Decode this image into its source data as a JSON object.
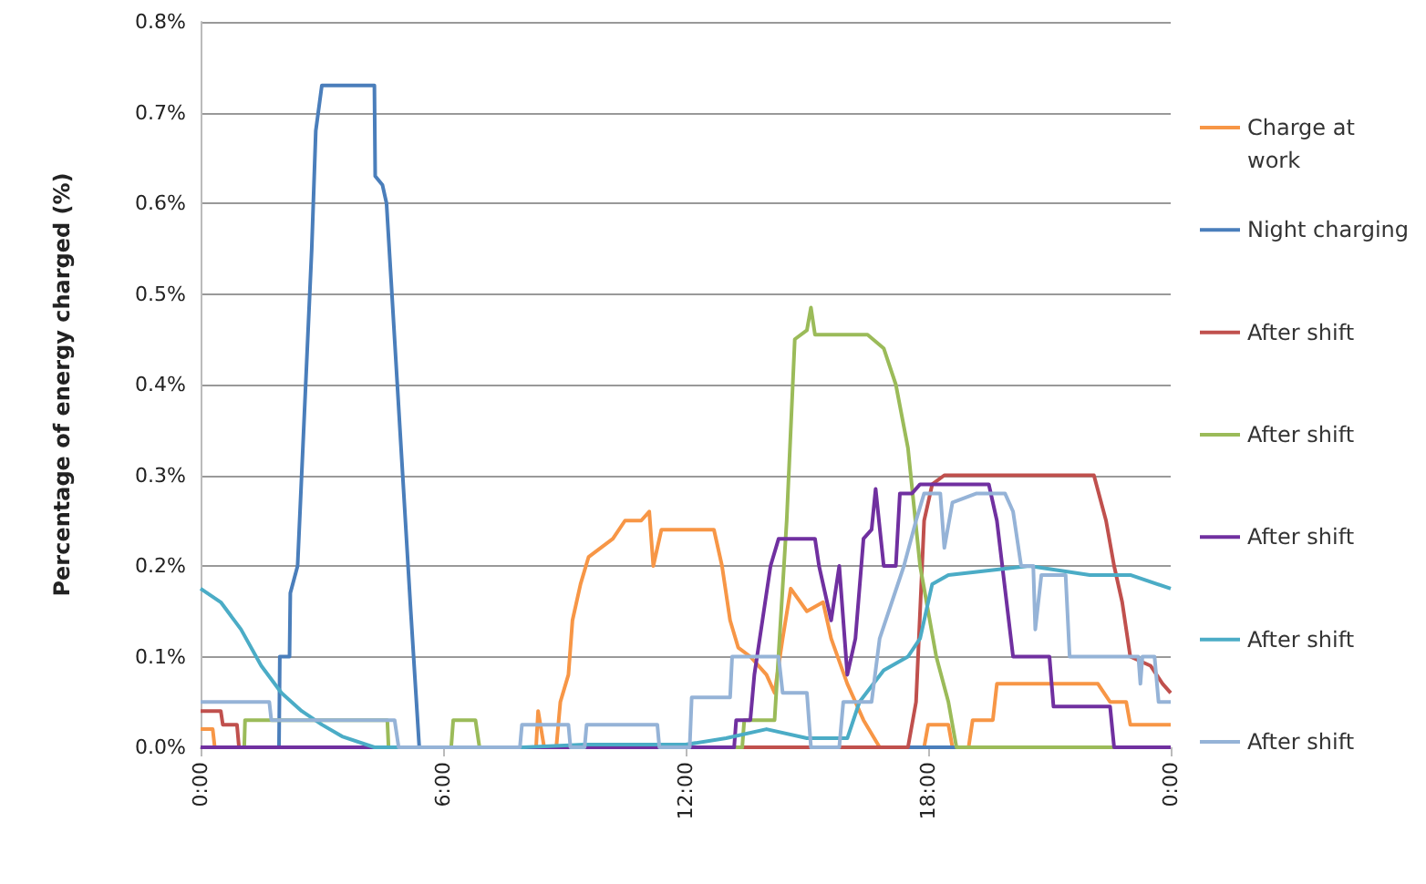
{
  "chart_data": {
    "type": "line",
    "ylabel": "Percentage of energy charged (%)",
    "xlim": [
      0,
      24
    ],
    "xticks": [
      {
        "value": 0,
        "label": "0:00"
      },
      {
        "value": 6,
        "label": "6:00"
      },
      {
        "value": 12,
        "label": "12:00"
      },
      {
        "value": 18,
        "label": "18:00"
      },
      {
        "value": 24,
        "label": "0:00"
      }
    ],
    "ylim": [
      0,
      0.8
    ],
    "yticks": [
      {
        "value": 0,
        "label": "0.0%"
      },
      {
        "value": 0.1,
        "label": "0.1%"
      },
      {
        "value": 0.2,
        "label": "0.2%"
      },
      {
        "value": 0.3,
        "label": "0.3%"
      },
      {
        "value": 0.4,
        "label": "0.4%"
      },
      {
        "value": 0.5,
        "label": "0.5%"
      },
      {
        "value": 0.6,
        "label": "0.6%"
      },
      {
        "value": 0.7,
        "label": "0.7%"
      },
      {
        "value": 0.8,
        "label": "0.8%"
      }
    ],
    "grid": "y",
    "legend": "right",
    "marker": "none",
    "line_style": "solid",
    "series": [
      {
        "name": "Charge at work",
        "color": "#f79646",
        "x": [
          0,
          0.3,
          0.35,
          8.3,
          8.35,
          8.5,
          8.8,
          8.9,
          9.1,
          9.2,
          9.4,
          9.6,
          9.9,
          10.2,
          10.5,
          10.9,
          11.1,
          11.2,
          11.4,
          12.7,
          12.9,
          13.1,
          13.3,
          13.6,
          14.0,
          14.2,
          14.4,
          14.6,
          15.0,
          15.4,
          15.6,
          16.0,
          16.4,
          16.8,
          17.9,
          18.0,
          18.5,
          18.6,
          19.0,
          19.1,
          19.6,
          19.7,
          22.2,
          22.5,
          22.9,
          23.0,
          24
        ],
        "values": [
          0.02,
          0.02,
          0,
          0,
          0.04,
          0,
          0,
          0.05,
          0.08,
          0.14,
          0.18,
          0.21,
          0.22,
          0.23,
          0.25,
          0.25,
          0.26,
          0.2,
          0.24,
          0.24,
          0.2,
          0.14,
          0.11,
          0.1,
          0.08,
          0.06,
          0.12,
          0.175,
          0.15,
          0.16,
          0.12,
          0.07,
          0.03,
          0,
          0,
          0.025,
          0.025,
          0,
          0,
          0.03,
          0.03,
          0.07,
          0.07,
          0.05,
          0.05,
          0.025,
          0.025
        ]
      },
      {
        "name": "Night charging",
        "color": "#4a7ebb",
        "x": [
          0,
          1.94,
          1.96,
          2.2,
          2.22,
          2.4,
          2.5,
          2.6,
          2.75,
          2.85,
          3.0,
          4.3,
          4.32,
          4.5,
          4.6,
          4.8,
          5.0,
          5.2,
          5.41,
          24
        ],
        "values": [
          0,
          0,
          0.1,
          0.1,
          0.17,
          0.2,
          0.3,
          0.4,
          0.55,
          0.68,
          0.73,
          0.73,
          0.63,
          0.62,
          0.6,
          0.45,
          0.3,
          0.15,
          0,
          0
        ]
      },
      {
        "name": "After shift",
        "color": "#c0504d",
        "x": [
          0,
          0.5,
          0.55,
          0.9,
          0.95,
          17.5,
          17.7,
          17.9,
          18.1,
          18.4,
          22.1,
          22.4,
          22.6,
          22.8,
          23.0,
          23.5,
          23.8,
          24
        ],
        "values": [
          0.04,
          0.04,
          0.025,
          0.025,
          0,
          0,
          0.05,
          0.25,
          0.29,
          0.3,
          0.3,
          0.25,
          0.2,
          0.16,
          0.1,
          0.09,
          0.07,
          0.06
        ]
      },
      {
        "name": "After shift",
        "color": "#9bbb59",
        "x": [
          0,
          1.08,
          1.1,
          4.62,
          4.65,
          6.2,
          6.25,
          6.8,
          6.9,
          13.4,
          13.45,
          14.2,
          14.5,
          14.7,
          15.0,
          15.1,
          15.2,
          16.5,
          16.9,
          17.2,
          17.5,
          17.8,
          18.2,
          18.5,
          18.7,
          24
        ],
        "values": [
          0,
          0,
          0.03,
          0.03,
          0,
          0,
          0.03,
          0.03,
          0,
          0,
          0.03,
          0.03,
          0.25,
          0.45,
          0.46,
          0.485,
          0.455,
          0.455,
          0.44,
          0.4,
          0.33,
          0.2,
          0.1,
          0.05,
          0,
          0
        ]
      },
      {
        "name": "After shift",
        "color": "#7030a0",
        "x": [
          0,
          13.2,
          13.25,
          13.6,
          13.7,
          13.9,
          14.1,
          14.3,
          15.2,
          15.3,
          15.6,
          15.8,
          16.0,
          16.2,
          16.4,
          16.6,
          16.7,
          16.9,
          17.2,
          17.3,
          17.6,
          17.8,
          19.5,
          19.7,
          20.1,
          21.0,
          21.1,
          22.5,
          22.6,
          24
        ],
        "values": [
          0,
          0,
          0.03,
          0.03,
          0.08,
          0.14,
          0.2,
          0.23,
          0.23,
          0.2,
          0.14,
          0.2,
          0.08,
          0.12,
          0.23,
          0.24,
          0.285,
          0.2,
          0.2,
          0.28,
          0.28,
          0.29,
          0.29,
          0.25,
          0.1,
          0.1,
          0.045,
          0.045,
          0,
          0
        ]
      },
      {
        "name": "After shift",
        "color": "#4bacc6",
        "x": [
          0,
          0.5,
          1,
          1.5,
          2,
          2.5,
          3,
          3.5,
          4.3,
          8,
          9.5,
          12,
          13,
          14,
          15,
          16,
          16.3,
          16.9,
          17.5,
          17.8,
          18.1,
          18.5,
          19.5,
          20.5,
          22,
          23,
          24
        ],
        "values": [
          0.175,
          0.16,
          0.13,
          0.09,
          0.06,
          0.04,
          0.025,
          0.012,
          0,
          0,
          0.003,
          0.003,
          0.01,
          0.02,
          0.01,
          0.01,
          0.05,
          0.085,
          0.1,
          0.12,
          0.18,
          0.19,
          0.195,
          0.2,
          0.19,
          0.19,
          0.175
        ]
      },
      {
        "name": "After shift",
        "color": "#95b3d7",
        "x": [
          0,
          1.7,
          1.75,
          4.8,
          4.9,
          7.9,
          7.95,
          9.1,
          9.15,
          9.5,
          9.55,
          11.3,
          11.35,
          12.1,
          12.15,
          13.1,
          13.15,
          14.3,
          14.4,
          15.0,
          15.1,
          15.8,
          15.9,
          16.6,
          16.8,
          17.4,
          17.7,
          17.9,
          18.3,
          18.4,
          18.6,
          19.2,
          19.9,
          20.1,
          20.3,
          20.6,
          20.65,
          20.8,
          21.4,
          21.5,
          23.2,
          23.25,
          23.3,
          23.6,
          23.7,
          24
        ],
        "values": [
          0.05,
          0.05,
          0.03,
          0.03,
          0,
          0,
          0.025,
          0.025,
          0,
          0,
          0.025,
          0.025,
          0,
          0,
          0.055,
          0.055,
          0.1,
          0.1,
          0.06,
          0.06,
          0,
          0,
          0.05,
          0.05,
          0.12,
          0.2,
          0.25,
          0.28,
          0.28,
          0.22,
          0.27,
          0.28,
          0.28,
          0.26,
          0.2,
          0.2,
          0.13,
          0.19,
          0.19,
          0.1,
          0.1,
          0.07,
          0.1,
          0.1,
          0.05,
          0.05
        ]
      }
    ]
  }
}
